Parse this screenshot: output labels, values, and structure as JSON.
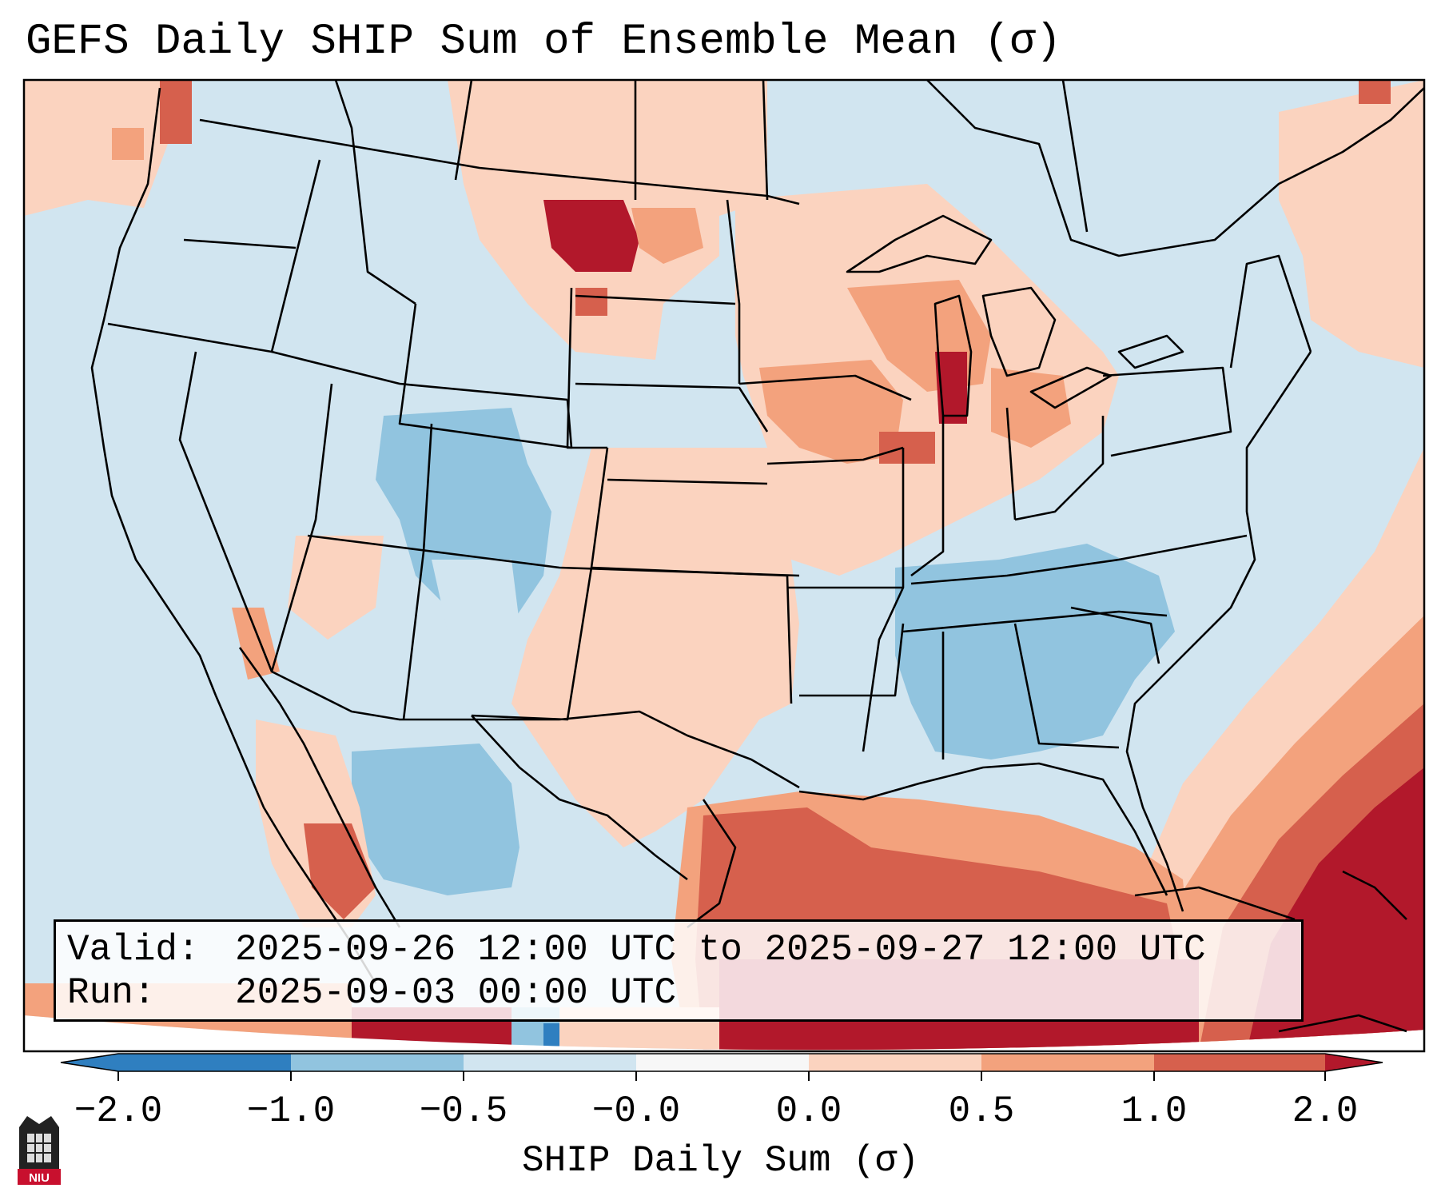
{
  "title": "GEFS Daily SHIP Sum of Ensemble Mean (σ)",
  "info": {
    "valid_label": "Valid:",
    "valid_value": "2025-09-26 12:00 UTC to 2025-09-27 12:00 UTC",
    "run_label": "Run:",
    "run_value": "2025-09-03 00:00 UTC"
  },
  "colorbar": {
    "label": "SHIP Daily Sum (σ)",
    "ticks": [
      "−2.0",
      "−1.0",
      "−0.5",
      "−0.0",
      "0.0",
      "0.5",
      "1.0",
      "2.0"
    ],
    "colors": [
      "#2f7fc0",
      "#91c4df",
      "#d1e5f0",
      "#f7f7f7",
      "#fbd3bf",
      "#f3a27d",
      "#d6604d",
      "#b2182b"
    ],
    "extend": "both"
  },
  "legend_colors": {
    "strong_negative": "#2f7fc0",
    "negative": "#91c4df",
    "slight_negative": "#d1e5f0",
    "slight_positive": "#fbd3bf",
    "positive": "#f3a27d",
    "strong_positive": "#d6604d",
    "extreme_positive": "#b2182b"
  },
  "logo": {
    "text": "NIU"
  }
}
